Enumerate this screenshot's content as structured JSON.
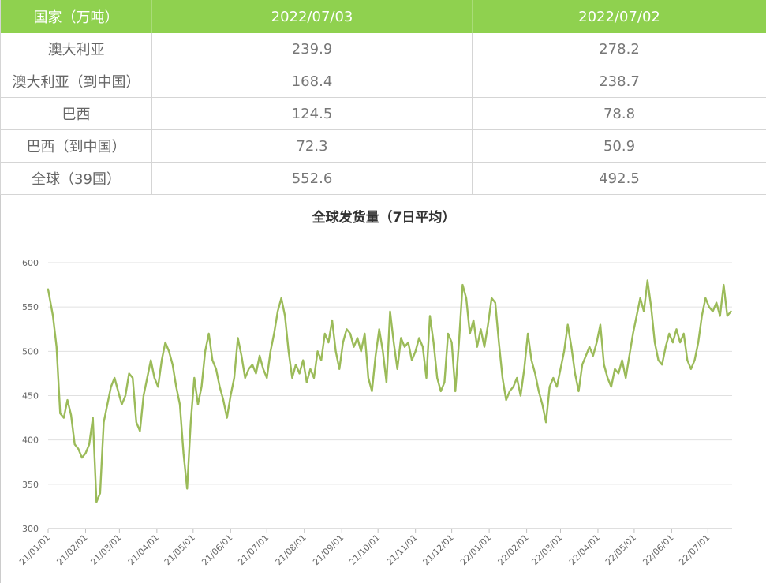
{
  "table": {
    "headers": [
      "国家（万吨）",
      "2022/07/03",
      "2022/07/02"
    ],
    "rows": [
      {
        "country": "澳大利亚",
        "v1": "239.9",
        "v2": "278.2"
      },
      {
        "country": "澳大利亚（到中国）",
        "v1": "168.4",
        "v2": "238.7"
      },
      {
        "country": "巴西",
        "v1": "124.5",
        "v2": "78.8"
      },
      {
        "country": "巴西（到中国）",
        "v1": "72.3",
        "v2": "50.9"
      },
      {
        "country": "全球（39国）",
        "v1": "552.6",
        "v2": "492.5"
      }
    ]
  },
  "chart_data": {
    "type": "line",
    "title": "全球发货量（7日平均）",
    "xlabel": "",
    "ylabel": "",
    "ylim": [
      300,
      600
    ],
    "yticks": [
      300,
      350,
      400,
      450,
      500,
      550,
      600
    ],
    "xticks": [
      "21/01/01",
      "21/02/01",
      "21/03/01",
      "21/04/01",
      "21/05/01",
      "21/06/01",
      "21/07/01",
      "21/08/01",
      "21/09/01",
      "21/10/01",
      "21/11/01",
      "21/12/01",
      "22/01/01",
      "22/02/01",
      "22/03/01",
      "22/04/01",
      "22/05/01",
      "22/06/01",
      "22/07/01"
    ],
    "grid": true,
    "line_color": "#9bbb59",
    "series": [
      {
        "name": "",
        "points": [
          [
            "2021-01-01",
            570
          ],
          [
            "2021-01-05",
            540
          ],
          [
            "2021-01-08",
            505
          ],
          [
            "2021-01-11",
            430
          ],
          [
            "2021-01-14",
            425
          ],
          [
            "2021-01-17",
            445
          ],
          [
            "2021-01-20",
            428
          ],
          [
            "2021-01-23",
            395
          ],
          [
            "2021-01-26",
            390
          ],
          [
            "2021-01-29",
            380
          ],
          [
            "2021-02-01",
            385
          ],
          [
            "2021-02-04",
            395
          ],
          [
            "2021-02-07",
            425
          ],
          [
            "2021-02-10",
            330
          ],
          [
            "2021-02-13",
            340
          ],
          [
            "2021-02-16",
            420
          ],
          [
            "2021-02-19",
            440
          ],
          [
            "2021-02-22",
            460
          ],
          [
            "2021-02-25",
            470
          ],
          [
            "2021-02-28",
            455
          ],
          [
            "2021-03-03",
            440
          ],
          [
            "2021-03-06",
            450
          ],
          [
            "2021-03-09",
            475
          ],
          [
            "2021-03-12",
            470
          ],
          [
            "2021-03-15",
            420
          ],
          [
            "2021-03-18",
            410
          ],
          [
            "2021-03-21",
            450
          ],
          [
            "2021-03-24",
            470
          ],
          [
            "2021-03-27",
            490
          ],
          [
            "2021-03-30",
            470
          ],
          [
            "2021-04-02",
            460
          ],
          [
            "2021-04-05",
            490
          ],
          [
            "2021-04-08",
            510
          ],
          [
            "2021-04-11",
            500
          ],
          [
            "2021-04-14",
            485
          ],
          [
            "2021-04-17",
            460
          ],
          [
            "2021-04-20",
            440
          ],
          [
            "2021-04-23",
            385
          ],
          [
            "2021-04-26",
            345
          ],
          [
            "2021-04-29",
            420
          ],
          [
            "2021-05-02",
            470
          ],
          [
            "2021-05-05",
            440
          ],
          [
            "2021-05-08",
            460
          ],
          [
            "2021-05-11",
            500
          ],
          [
            "2021-05-14",
            520
          ],
          [
            "2021-05-17",
            490
          ],
          [
            "2021-05-20",
            480
          ],
          [
            "2021-05-23",
            460
          ],
          [
            "2021-05-26",
            445
          ],
          [
            "2021-05-29",
            425
          ],
          [
            "2021-06-01",
            450
          ],
          [
            "2021-06-04",
            470
          ],
          [
            "2021-06-07",
            515
          ],
          [
            "2021-06-10",
            495
          ],
          [
            "2021-06-13",
            470
          ],
          [
            "2021-06-16",
            480
          ],
          [
            "2021-06-19",
            485
          ],
          [
            "2021-06-22",
            475
          ],
          [
            "2021-06-25",
            495
          ],
          [
            "2021-06-28",
            480
          ],
          [
            "2021-07-01",
            470
          ],
          [
            "2021-07-04",
            500
          ],
          [
            "2021-07-07",
            520
          ],
          [
            "2021-07-10",
            545
          ],
          [
            "2021-07-13",
            560
          ],
          [
            "2021-07-16",
            540
          ],
          [
            "2021-07-19",
            500
          ],
          [
            "2021-07-22",
            470
          ],
          [
            "2021-07-25",
            485
          ],
          [
            "2021-07-28",
            475
          ],
          [
            "2021-07-31",
            490
          ],
          [
            "2021-08-03",
            465
          ],
          [
            "2021-08-06",
            480
          ],
          [
            "2021-08-09",
            470
          ],
          [
            "2021-08-12",
            500
          ],
          [
            "2021-08-15",
            490
          ],
          [
            "2021-08-18",
            520
          ],
          [
            "2021-08-21",
            510
          ],
          [
            "2021-08-24",
            535
          ],
          [
            "2021-08-27",
            500
          ],
          [
            "2021-08-30",
            480
          ],
          [
            "2021-09-02",
            510
          ],
          [
            "2021-09-05",
            525
          ],
          [
            "2021-09-08",
            520
          ],
          [
            "2021-09-11",
            505
          ],
          [
            "2021-09-14",
            515
          ],
          [
            "2021-09-17",
            500
          ],
          [
            "2021-09-20",
            520
          ],
          [
            "2021-09-23",
            470
          ],
          [
            "2021-09-26",
            455
          ],
          [
            "2021-09-29",
            495
          ],
          [
            "2021-10-02",
            525
          ],
          [
            "2021-10-05",
            500
          ],
          [
            "2021-10-08",
            465
          ],
          [
            "2021-10-11",
            545
          ],
          [
            "2021-10-14",
            510
          ],
          [
            "2021-10-17",
            480
          ],
          [
            "2021-10-20",
            515
          ],
          [
            "2021-10-23",
            505
          ],
          [
            "2021-10-26",
            510
          ],
          [
            "2021-10-29",
            490
          ],
          [
            "2021-11-01",
            500
          ],
          [
            "2021-11-04",
            515
          ],
          [
            "2021-11-07",
            505
          ],
          [
            "2021-11-10",
            470
          ],
          [
            "2021-11-13",
            540
          ],
          [
            "2021-11-16",
            510
          ],
          [
            "2021-11-19",
            470
          ],
          [
            "2021-11-22",
            455
          ],
          [
            "2021-11-25",
            465
          ],
          [
            "2021-11-28",
            520
          ],
          [
            "2021-12-01",
            510
          ],
          [
            "2021-12-04",
            455
          ],
          [
            "2021-12-07",
            510
          ],
          [
            "2021-12-10",
            575
          ],
          [
            "2021-12-13",
            560
          ],
          [
            "2021-12-16",
            520
          ],
          [
            "2021-12-19",
            535
          ],
          [
            "2021-12-22",
            505
          ],
          [
            "2021-12-25",
            525
          ],
          [
            "2021-12-28",
            505
          ],
          [
            "2021-12-31",
            530
          ],
          [
            "2022-01-03",
            560
          ],
          [
            "2022-01-06",
            555
          ],
          [
            "2022-01-09",
            510
          ],
          [
            "2022-01-12",
            470
          ],
          [
            "2022-01-15",
            445
          ],
          [
            "2022-01-18",
            455
          ],
          [
            "2022-01-21",
            460
          ],
          [
            "2022-01-24",
            470
          ],
          [
            "2022-01-27",
            450
          ],
          [
            "2022-01-30",
            480
          ],
          [
            "2022-02-02",
            520
          ],
          [
            "2022-02-05",
            490
          ],
          [
            "2022-02-08",
            475
          ],
          [
            "2022-02-11",
            455
          ],
          [
            "2022-02-14",
            440
          ],
          [
            "2022-02-17",
            420
          ],
          [
            "2022-02-20",
            460
          ],
          [
            "2022-02-23",
            470
          ],
          [
            "2022-02-26",
            460
          ],
          [
            "2022-03-01",
            480
          ],
          [
            "2022-03-04",
            500
          ],
          [
            "2022-03-07",
            530
          ],
          [
            "2022-03-10",
            505
          ],
          [
            "2022-03-13",
            475
          ],
          [
            "2022-03-16",
            455
          ],
          [
            "2022-03-19",
            485
          ],
          [
            "2022-03-22",
            495
          ],
          [
            "2022-03-25",
            505
          ],
          [
            "2022-03-28",
            495
          ],
          [
            "2022-03-31",
            510
          ],
          [
            "2022-04-03",
            530
          ],
          [
            "2022-04-06",
            485
          ],
          [
            "2022-04-09",
            470
          ],
          [
            "2022-04-12",
            460
          ],
          [
            "2022-04-15",
            480
          ],
          [
            "2022-04-18",
            475
          ],
          [
            "2022-04-21",
            490
          ],
          [
            "2022-04-24",
            470
          ],
          [
            "2022-04-27",
            495
          ],
          [
            "2022-04-30",
            520
          ],
          [
            "2022-05-03",
            540
          ],
          [
            "2022-05-06",
            560
          ],
          [
            "2022-05-09",
            545
          ],
          [
            "2022-05-12",
            580
          ],
          [
            "2022-05-15",
            550
          ],
          [
            "2022-05-18",
            510
          ],
          [
            "2022-05-21",
            490
          ],
          [
            "2022-05-24",
            485
          ],
          [
            "2022-05-27",
            505
          ],
          [
            "2022-05-30",
            520
          ],
          [
            "2022-06-02",
            510
          ],
          [
            "2022-06-05",
            525
          ],
          [
            "2022-06-08",
            510
          ],
          [
            "2022-06-11",
            520
          ],
          [
            "2022-06-14",
            490
          ],
          [
            "2022-06-17",
            480
          ],
          [
            "2022-06-20",
            490
          ],
          [
            "2022-06-23",
            510
          ],
          [
            "2022-06-26",
            540
          ],
          [
            "2022-06-29",
            560
          ],
          [
            "2022-07-02",
            550
          ],
          [
            "2022-07-05",
            545
          ],
          [
            "2022-07-08",
            555
          ],
          [
            "2022-07-11",
            540
          ],
          [
            "2022-07-14",
            575
          ],
          [
            "2022-07-17",
            540
          ],
          [
            "2022-07-20",
            545
          ]
        ]
      }
    ]
  }
}
